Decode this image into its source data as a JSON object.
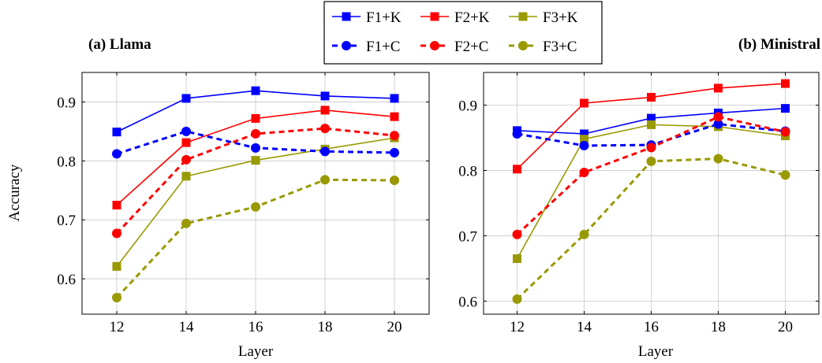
{
  "chart_data": [
    {
      "type": "line",
      "title": "(a) Llama",
      "xlabel": "Layer",
      "ylabel": "Accuracy",
      "x": [
        12,
        14,
        16,
        18,
        20
      ],
      "xticks": [
        "12",
        "14",
        "16",
        "18",
        "20"
      ],
      "xlim": [
        11,
        21
      ],
      "yticks": [
        "0.6",
        "0.7",
        "0.8",
        "0.9"
      ],
      "ylim": [
        0.54,
        0.95
      ],
      "grid": true,
      "series": [
        {
          "name": "F1+K",
          "color": "#0000ff",
          "marker": "square",
          "dashed": false,
          "values": [
            0.849,
            0.906,
            0.919,
            0.91,
            0.906
          ]
        },
        {
          "name": "F2+K",
          "color": "#ff0000",
          "marker": "square",
          "dashed": false,
          "values": [
            0.725,
            0.831,
            0.872,
            0.886,
            0.875
          ]
        },
        {
          "name": "F3+K",
          "color": "#999900",
          "marker": "square",
          "dashed": false,
          "values": [
            0.621,
            0.774,
            0.801,
            0.82,
            0.839
          ]
        },
        {
          "name": "F1+C",
          "color": "#0000ff",
          "marker": "circle",
          "dashed": true,
          "values": [
            0.812,
            0.85,
            0.822,
            0.816,
            0.814
          ]
        },
        {
          "name": "F2+C",
          "color": "#ff0000",
          "marker": "circle",
          "dashed": true,
          "values": [
            0.677,
            0.802,
            0.846,
            0.855,
            0.843
          ]
        },
        {
          "name": "F3+C",
          "color": "#999900",
          "marker": "circle",
          "dashed": true,
          "values": [
            0.568,
            0.694,
            0.722,
            0.768,
            0.767
          ]
        }
      ]
    },
    {
      "type": "line",
      "title": "(b) Ministral",
      "xlabel": "Layer",
      "ylabel": "",
      "x": [
        12,
        14,
        16,
        18,
        20
      ],
      "xticks": [
        "12",
        "14",
        "16",
        "18",
        "20"
      ],
      "xlim": [
        11,
        21
      ],
      "yticks": [
        "0.6",
        "0.7",
        "0.8",
        "0.9"
      ],
      "ylim": [
        0.58,
        0.95
      ],
      "grid": true,
      "series": [
        {
          "name": "F1+K",
          "color": "#0000ff",
          "marker": "square",
          "dashed": false,
          "values": [
            0.861,
            0.856,
            0.88,
            0.888,
            0.895
          ]
        },
        {
          "name": "F2+K",
          "color": "#ff0000",
          "marker": "square",
          "dashed": false,
          "values": [
            0.802,
            0.903,
            0.912,
            0.926,
            0.933
          ]
        },
        {
          "name": "F3+K",
          "color": "#999900",
          "marker": "square",
          "dashed": false,
          "values": [
            0.665,
            0.848,
            0.87,
            0.867,
            0.853
          ]
        },
        {
          "name": "F1+C",
          "color": "#0000ff",
          "marker": "circle",
          "dashed": true,
          "values": [
            0.856,
            0.838,
            0.839,
            0.871,
            0.86
          ]
        },
        {
          "name": "F2+C",
          "color": "#ff0000",
          "marker": "circle",
          "dashed": true,
          "values": [
            0.702,
            0.797,
            0.835,
            0.882,
            0.859
          ]
        },
        {
          "name": "F3+C",
          "color": "#999900",
          "marker": "circle",
          "dashed": true,
          "values": [
            0.603,
            0.702,
            0.814,
            0.818,
            0.793
          ]
        }
      ]
    }
  ],
  "legend": {
    "position": "top-center",
    "rows": [
      [
        {
          "name": "F1+K",
          "color": "#0000ff",
          "marker": "square",
          "dashed": false
        },
        {
          "name": "F2+K",
          "color": "#ff0000",
          "marker": "square",
          "dashed": false
        },
        {
          "name": "F3+K",
          "color": "#999900",
          "marker": "square",
          "dashed": false
        }
      ],
      [
        {
          "name": "F1+C",
          "color": "#0000ff",
          "marker": "circle",
          "dashed": true
        },
        {
          "name": "F2+C",
          "color": "#ff0000",
          "marker": "circle",
          "dashed": true
        },
        {
          "name": "F3+C",
          "color": "#999900",
          "marker": "circle",
          "dashed": true
        }
      ]
    ]
  }
}
